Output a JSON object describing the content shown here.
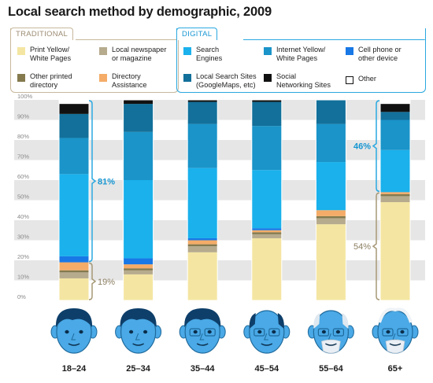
{
  "header": {
    "title": "Local search method by demographic, 2009"
  },
  "legend": {
    "traditional_label": "TRADITIONAL",
    "digital_label": "DIGITAL",
    "traditional": [
      {
        "label": "Print Yellow/\nWhite Pages",
        "color": "#f4e6a2"
      },
      {
        "label": "Local newspaper\nor magazine",
        "color": "#b7ab8e"
      },
      {
        "label": "Other printed\ndirectory",
        "color": "#847a4e"
      },
      {
        "label": "Directory\nAssistance",
        "color": "#f4ac68"
      }
    ],
    "digital": [
      {
        "label": "Search\nEngines",
        "color": "#1ab1ec"
      },
      {
        "label": "Internet Yellow/\nWhite Pages",
        "color": "#1a94c9"
      },
      {
        "label": "Cell phone or\nother device",
        "color": "#1878e6"
      },
      {
        "label": "Local Search Sites\n(GoogleMaps, etc)",
        "color": "#12709a"
      },
      {
        "label": "Social\nNetworking Sites",
        "color": "#111111"
      },
      {
        "label": "Other",
        "color": "#ffffff"
      }
    ]
  },
  "chart_data": {
    "type": "bar",
    "stacked": true,
    "title": "Local search method by demographic, 2009",
    "categories": [
      "18–24",
      "25–34",
      "35–44",
      "45–54",
      "55–64",
      "65+"
    ],
    "ylim": [
      0,
      100
    ],
    "yticks": [
      "0%",
      "10%",
      "20%",
      "30%",
      "40%",
      "50%",
      "60%",
      "70%",
      "80%",
      "90%",
      "100%"
    ],
    "series": [
      {
        "name": "Print Yellow/White Pages",
        "color": "#f4e6a2",
        "values": [
          11,
          13,
          24,
          31,
          38,
          49
        ]
      },
      {
        "name": "Local newspaper or magazine",
        "color": "#b7ab8e",
        "values": [
          3,
          2,
          3,
          2,
          3,
          3
        ]
      },
      {
        "name": "Other printed directory",
        "color": "#847a4e",
        "values": [
          1,
          1,
          1,
          1,
          1,
          1
        ]
      },
      {
        "name": "Directory Assistance",
        "color": "#f4ac68",
        "values": [
          4,
          2,
          2,
          1,
          3,
          1
        ]
      },
      {
        "name": "Cell phone or other device",
        "color": "#1878e6",
        "values": [
          3,
          3,
          1,
          1,
          0,
          0
        ]
      },
      {
        "name": "Search Engines",
        "color": "#1ab1ec",
        "values": [
          41,
          39,
          35,
          29,
          24,
          21
        ]
      },
      {
        "name": "Internet Yellow/White Pages",
        "color": "#1a94c9",
        "values": [
          18,
          24,
          22,
          22,
          19,
          15
        ]
      },
      {
        "name": "Local Search Sites (GoogleMaps, etc)",
        "color": "#12709a",
        "values": [
          12,
          14,
          11,
          12,
          12,
          4
        ]
      },
      {
        "name": "Social Networking Sites",
        "color": "#111111",
        "values": [
          5,
          2,
          1,
          1,
          0,
          4
        ]
      },
      {
        "name": "Other",
        "color": "#ffffff",
        "values": [
          2,
          0,
          0,
          0,
          0,
          2
        ]
      }
    ],
    "annotations": [
      {
        "category": "18–24",
        "group": "digital",
        "text": "81%",
        "from": 19,
        "to": 100
      },
      {
        "category": "18–24",
        "group": "traditional",
        "text": "19%",
        "from": 0,
        "to": 19
      },
      {
        "category": "65+",
        "group": "digital",
        "text": "46%",
        "from": 54,
        "to": 100
      },
      {
        "category": "65+",
        "group": "traditional",
        "text": "54%",
        "from": 0,
        "to": 54
      }
    ],
    "grid": "alternating bands",
    "legend": "top"
  },
  "colors": {
    "digital_accent": "#2aa8e0",
    "traditional_accent": "#a69876",
    "face": "#4aa9e6",
    "face_dark": "#1f6a9c"
  },
  "icons": [
    "face-18-24-icon",
    "face-25-34-icon",
    "face-35-44-icon",
    "face-45-54-icon",
    "face-55-64-icon",
    "face-65-plus-icon"
  ]
}
